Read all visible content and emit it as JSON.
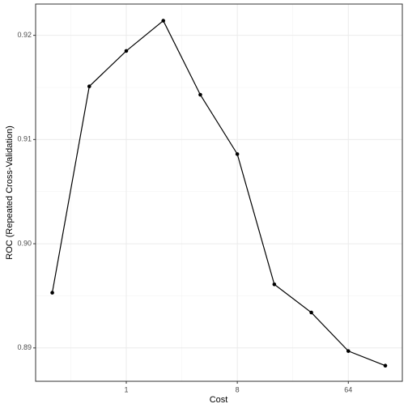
{
  "chart_data": {
    "type": "line",
    "x_label": "Cost",
    "y_label": "ROC (Repeated Cross-Validation)",
    "x": [
      0.25,
      0.5,
      1,
      2,
      4,
      8,
      16,
      32,
      64,
      128
    ],
    "series": [
      {
        "color": "#000000",
        "values": [
          0.8953,
          0.9151,
          0.9185,
          0.9214,
          0.9143,
          0.9086,
          0.8961,
          0.8934,
          0.8897,
          0.8883
        ]
      }
    ],
    "x_log": true,
    "xlim": [
      0.183,
      176
    ],
    "xticks": [
      1,
      8,
      64
    ],
    "ylim": [
      0.8868,
      0.923
    ],
    "yticks": [
      {
        "value": 0.89,
        "label": "0.89"
      },
      {
        "value": 0.9,
        "label": "0.90"
      },
      0.91,
      0.92
    ],
    "grid": true
  }
}
